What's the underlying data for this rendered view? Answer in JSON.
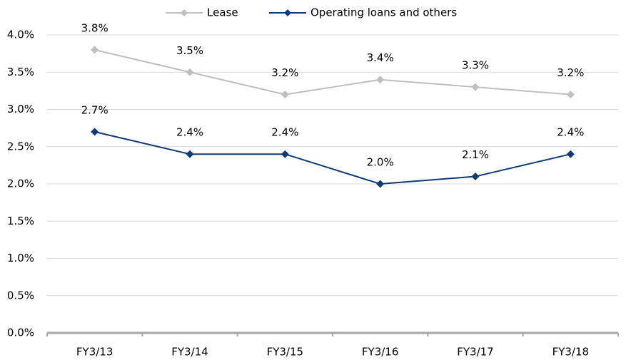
{
  "chart_data": {
    "type": "line",
    "categories": [
      "FY3/13",
      "FY3/14",
      "FY3/15",
      "FY3/16",
      "FY3/17",
      "FY3/18"
    ],
    "series": [
      {
        "name": "Lease",
        "color": "#bfbfbf",
        "values": [
          3.8,
          3.5,
          3.2,
          3.4,
          3.3,
          3.2
        ],
        "value_labels": [
          "3.8%",
          "3.5%",
          "3.2%",
          "3.4%",
          "3.3%",
          "3.2%"
        ]
      },
      {
        "name": "Operating loans and others",
        "color": "#0d3b78",
        "values": [
          2.7,
          2.4,
          2.4,
          2.0,
          2.1,
          2.4
        ],
        "value_labels": [
          "2.7%",
          "2.4%",
          "2.4%",
          "2.0%",
          "2.1%",
          "2.4%"
        ]
      }
    ],
    "ylim": [
      0,
      4
    ],
    "yticks": [
      {
        "value": 0,
        "label": "0.0%"
      },
      {
        "value": 0.5,
        "label": "0.5%"
      },
      {
        "value": 1,
        "label": "1.0%"
      },
      {
        "value": 1.5,
        "label": "1.5%"
      },
      {
        "value": 2,
        "label": "2.0%"
      },
      {
        "value": 2.5,
        "label": "2.5%"
      },
      {
        "value": 3,
        "label": "3.0%"
      },
      {
        "value": 3.5,
        "label": "3.5%"
      },
      {
        "value": 4,
        "label": "4.0%"
      }
    ],
    "grid": true,
    "legend": "top"
  }
}
